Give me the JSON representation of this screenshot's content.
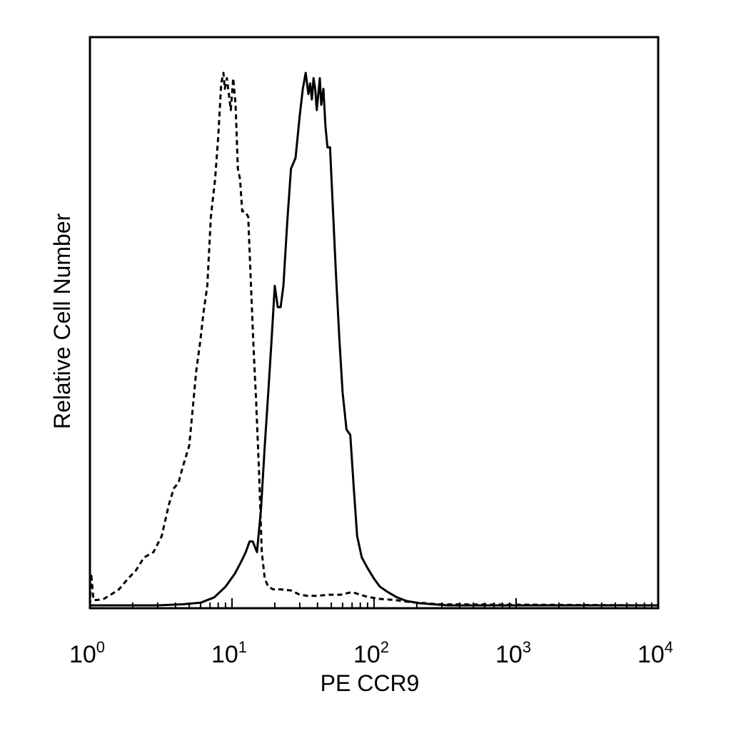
{
  "chart_data": {
    "type": "line",
    "title": "",
    "xlabel": "PE CCR9",
    "ylabel": "Relative Cell Number",
    "x_scale": "log",
    "xlim": [
      1,
      10000
    ],
    "ylim": [
      0,
      1
    ],
    "grid": false,
    "legend": "none",
    "x_ticks": [
      {
        "base": "10",
        "exp": "0",
        "value": 1
      },
      {
        "base": "10",
        "exp": "1",
        "value": 10
      },
      {
        "base": "10",
        "exp": "2",
        "value": 100
      },
      {
        "base": "10",
        "exp": "3",
        "value": 1000
      },
      {
        "base": "10",
        "exp": "4",
        "value": 10000
      }
    ],
    "series": [
      {
        "style": "dashed",
        "color": "#000000",
        "x": [
          1.0,
          1.02,
          1.06,
          1.12,
          1.25,
          1.4,
          1.6,
          1.85,
          2.1,
          2.4,
          2.8,
          3.2,
          3.6,
          3.9,
          4.2,
          4.5,
          5.0,
          5.6,
          6.0,
          6.3,
          6.7,
          7.1,
          7.6,
          8.0,
          8.4,
          8.7,
          8.9,
          9.2,
          9.5,
          9.8,
          10.2,
          10.6,
          11.0,
          11.4,
          11.8,
          12.3,
          13.0,
          13.6,
          14.2,
          14.8,
          15.5,
          16.2,
          17.0,
          18.0,
          19.5,
          22,
          26,
          30,
          34,
          40,
          48,
          58,
          70,
          80,
          90,
          110,
          140,
          180,
          230,
          280,
          10000
        ],
        "y": [
          0.0,
          0.06,
          0.01,
          0.01,
          0.012,
          0.02,
          0.03,
          0.05,
          0.065,
          0.09,
          0.1,
          0.13,
          0.19,
          0.22,
          0.23,
          0.26,
          0.3,
          0.44,
          0.5,
          0.55,
          0.6,
          0.73,
          0.8,
          0.88,
          0.98,
          1.0,
          0.97,
          0.99,
          0.96,
          0.93,
          0.99,
          0.94,
          0.82,
          0.8,
          0.74,
          0.74,
          0.73,
          0.6,
          0.48,
          0.38,
          0.25,
          0.1,
          0.05,
          0.035,
          0.03,
          0.03,
          0.028,
          0.02,
          0.018,
          0.018,
          0.02,
          0.02,
          0.025,
          0.02,
          0.016,
          0.012,
          0.01,
          0.006,
          0.004,
          0.002,
          0.0
        ]
      },
      {
        "style": "solid",
        "color": "#000000",
        "x": [
          1.0,
          3.0,
          4.5,
          6.0,
          7.5,
          9.0,
          10.5,
          11.5,
          12.5,
          13.3,
          14.0,
          15.0,
          16.0,
          17.0,
          18.0,
          19.0,
          20.0,
          21.0,
          22.0,
          23.0,
          24.5,
          26.0,
          28.0,
          30.0,
          31.5,
          33.0,
          34.5,
          35.5,
          36.5,
          37.5,
          38.5,
          39.5,
          40.5,
          41.5,
          42.5,
          44.0,
          45.5,
          47.0,
          49.0,
          51.0,
          54.0,
          57.0,
          60.0,
          64.0,
          68.0,
          72.0,
          76.0,
          82.0,
          90.0,
          100.0,
          110.0,
          125.0,
          145.0,
          170.0,
          210.0,
          260.0,
          330.0,
          10000.0
        ],
        "y": [
          0.0,
          0.0,
          0.002,
          0.005,
          0.015,
          0.035,
          0.06,
          0.08,
          0.1,
          0.12,
          0.12,
          0.1,
          0.18,
          0.3,
          0.4,
          0.5,
          0.6,
          0.56,
          0.56,
          0.6,
          0.72,
          0.82,
          0.84,
          0.92,
          0.97,
          1.0,
          0.96,
          0.98,
          0.95,
          0.99,
          0.97,
          0.93,
          0.96,
          0.99,
          0.94,
          0.97,
          0.9,
          0.86,
          0.86,
          0.76,
          0.62,
          0.5,
          0.4,
          0.33,
          0.32,
          0.22,
          0.13,
          0.09,
          0.07,
          0.05,
          0.035,
          0.025,
          0.015,
          0.008,
          0.004,
          0.002,
          0.0,
          0.0
        ]
      }
    ]
  }
}
